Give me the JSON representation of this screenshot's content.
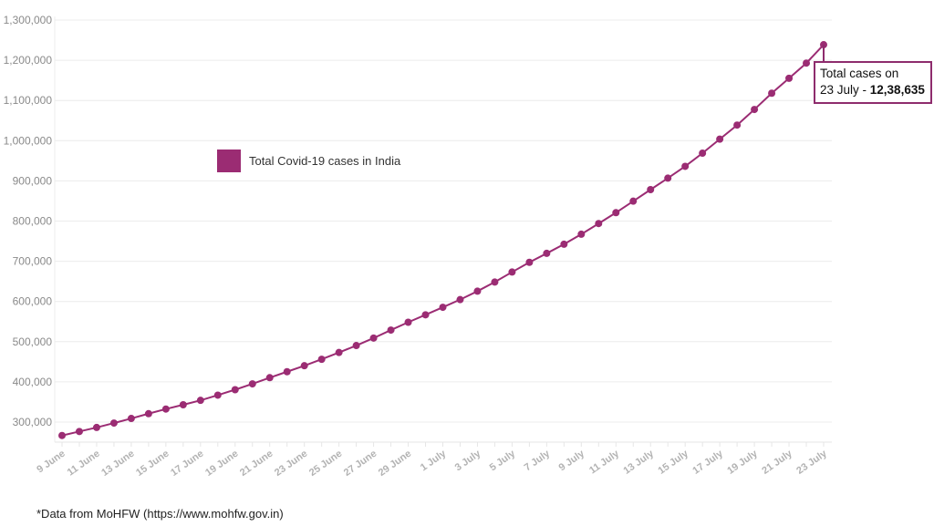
{
  "chart_data": {
    "type": "line",
    "title": "",
    "xlabel": "",
    "ylabel": "",
    "ylim": [
      250000,
      1300000
    ],
    "grid": true,
    "legend_position": "inside-top-left",
    "y_ticks": [
      "300,000",
      "400,000",
      "500,000",
      "600,000",
      "700,000",
      "800,000",
      "900,000",
      "1,000,000",
      "1,100,000",
      "1,200,000",
      "1,300,000"
    ],
    "y_tick_values": [
      300000,
      400000,
      500000,
      600000,
      700000,
      800000,
      900000,
      1000000,
      1100000,
      1200000,
      1300000
    ],
    "x_tick_labels": [
      "9 June",
      "11 June",
      "13 June",
      "15 June",
      "17 June",
      "19 June",
      "21 June",
      "23 June",
      "25 June",
      "27 June",
      "29 June",
      "1 July",
      "3 July",
      "5 July",
      "7 July",
      "9 July",
      "11 July",
      "13 July",
      "15 July",
      "17 July",
      "19 July",
      "21 July",
      "23 July"
    ],
    "categories": [
      "9 June",
      "10 June",
      "11 June",
      "12 June",
      "13 June",
      "14 June",
      "15 June",
      "16 June",
      "17 June",
      "18 June",
      "19 June",
      "20 June",
      "21 June",
      "22 June",
      "23 June",
      "24 June",
      "25 June",
      "26 June",
      "27 June",
      "28 June",
      "29 June",
      "30 June",
      "1 July",
      "2 July",
      "3 July",
      "4 July",
      "5 July",
      "6 July",
      "7 July",
      "8 July",
      "9 July",
      "10 July",
      "11 July",
      "12 July",
      "13 July",
      "14 July",
      "15 July",
      "16 July",
      "17 July",
      "18 July",
      "19 July",
      "20 July",
      "21 July",
      "22 July",
      "23 July"
    ],
    "series": [
      {
        "name": "Total Covid-19 cases in India",
        "color": "#9b2c73",
        "values": [
          266598,
          276583,
          286579,
          297535,
          308993,
          320922,
          332424,
          343091,
          354065,
          366946,
          380532,
          395048,
          410461,
          425282,
          440215,
          456183,
          473105,
          490401,
          508953,
          528859,
          548318,
          566840,
          585493,
          604641,
          625544,
          648315,
          673165,
          697413,
          719665,
          742417,
          767296,
          793802,
          820916,
          849553,
          878254,
          906752,
          936181,
          968876,
          1003832,
          1038716,
          1077618,
          1118043,
          1155191,
          1192915,
          1238635
        ]
      }
    ],
    "annotation": {
      "text_line1": "Total cases on",
      "text_line2_prefix": "23 July - ",
      "text_line2_value": "12,38,635",
      "target": "23 July"
    }
  },
  "legend": {
    "label": "Total Covid-19 cases in India",
    "color": "#9b2c73"
  },
  "footer": {
    "source": "*Data from MoHFW (https://www.mohfw.gov.in)"
  }
}
